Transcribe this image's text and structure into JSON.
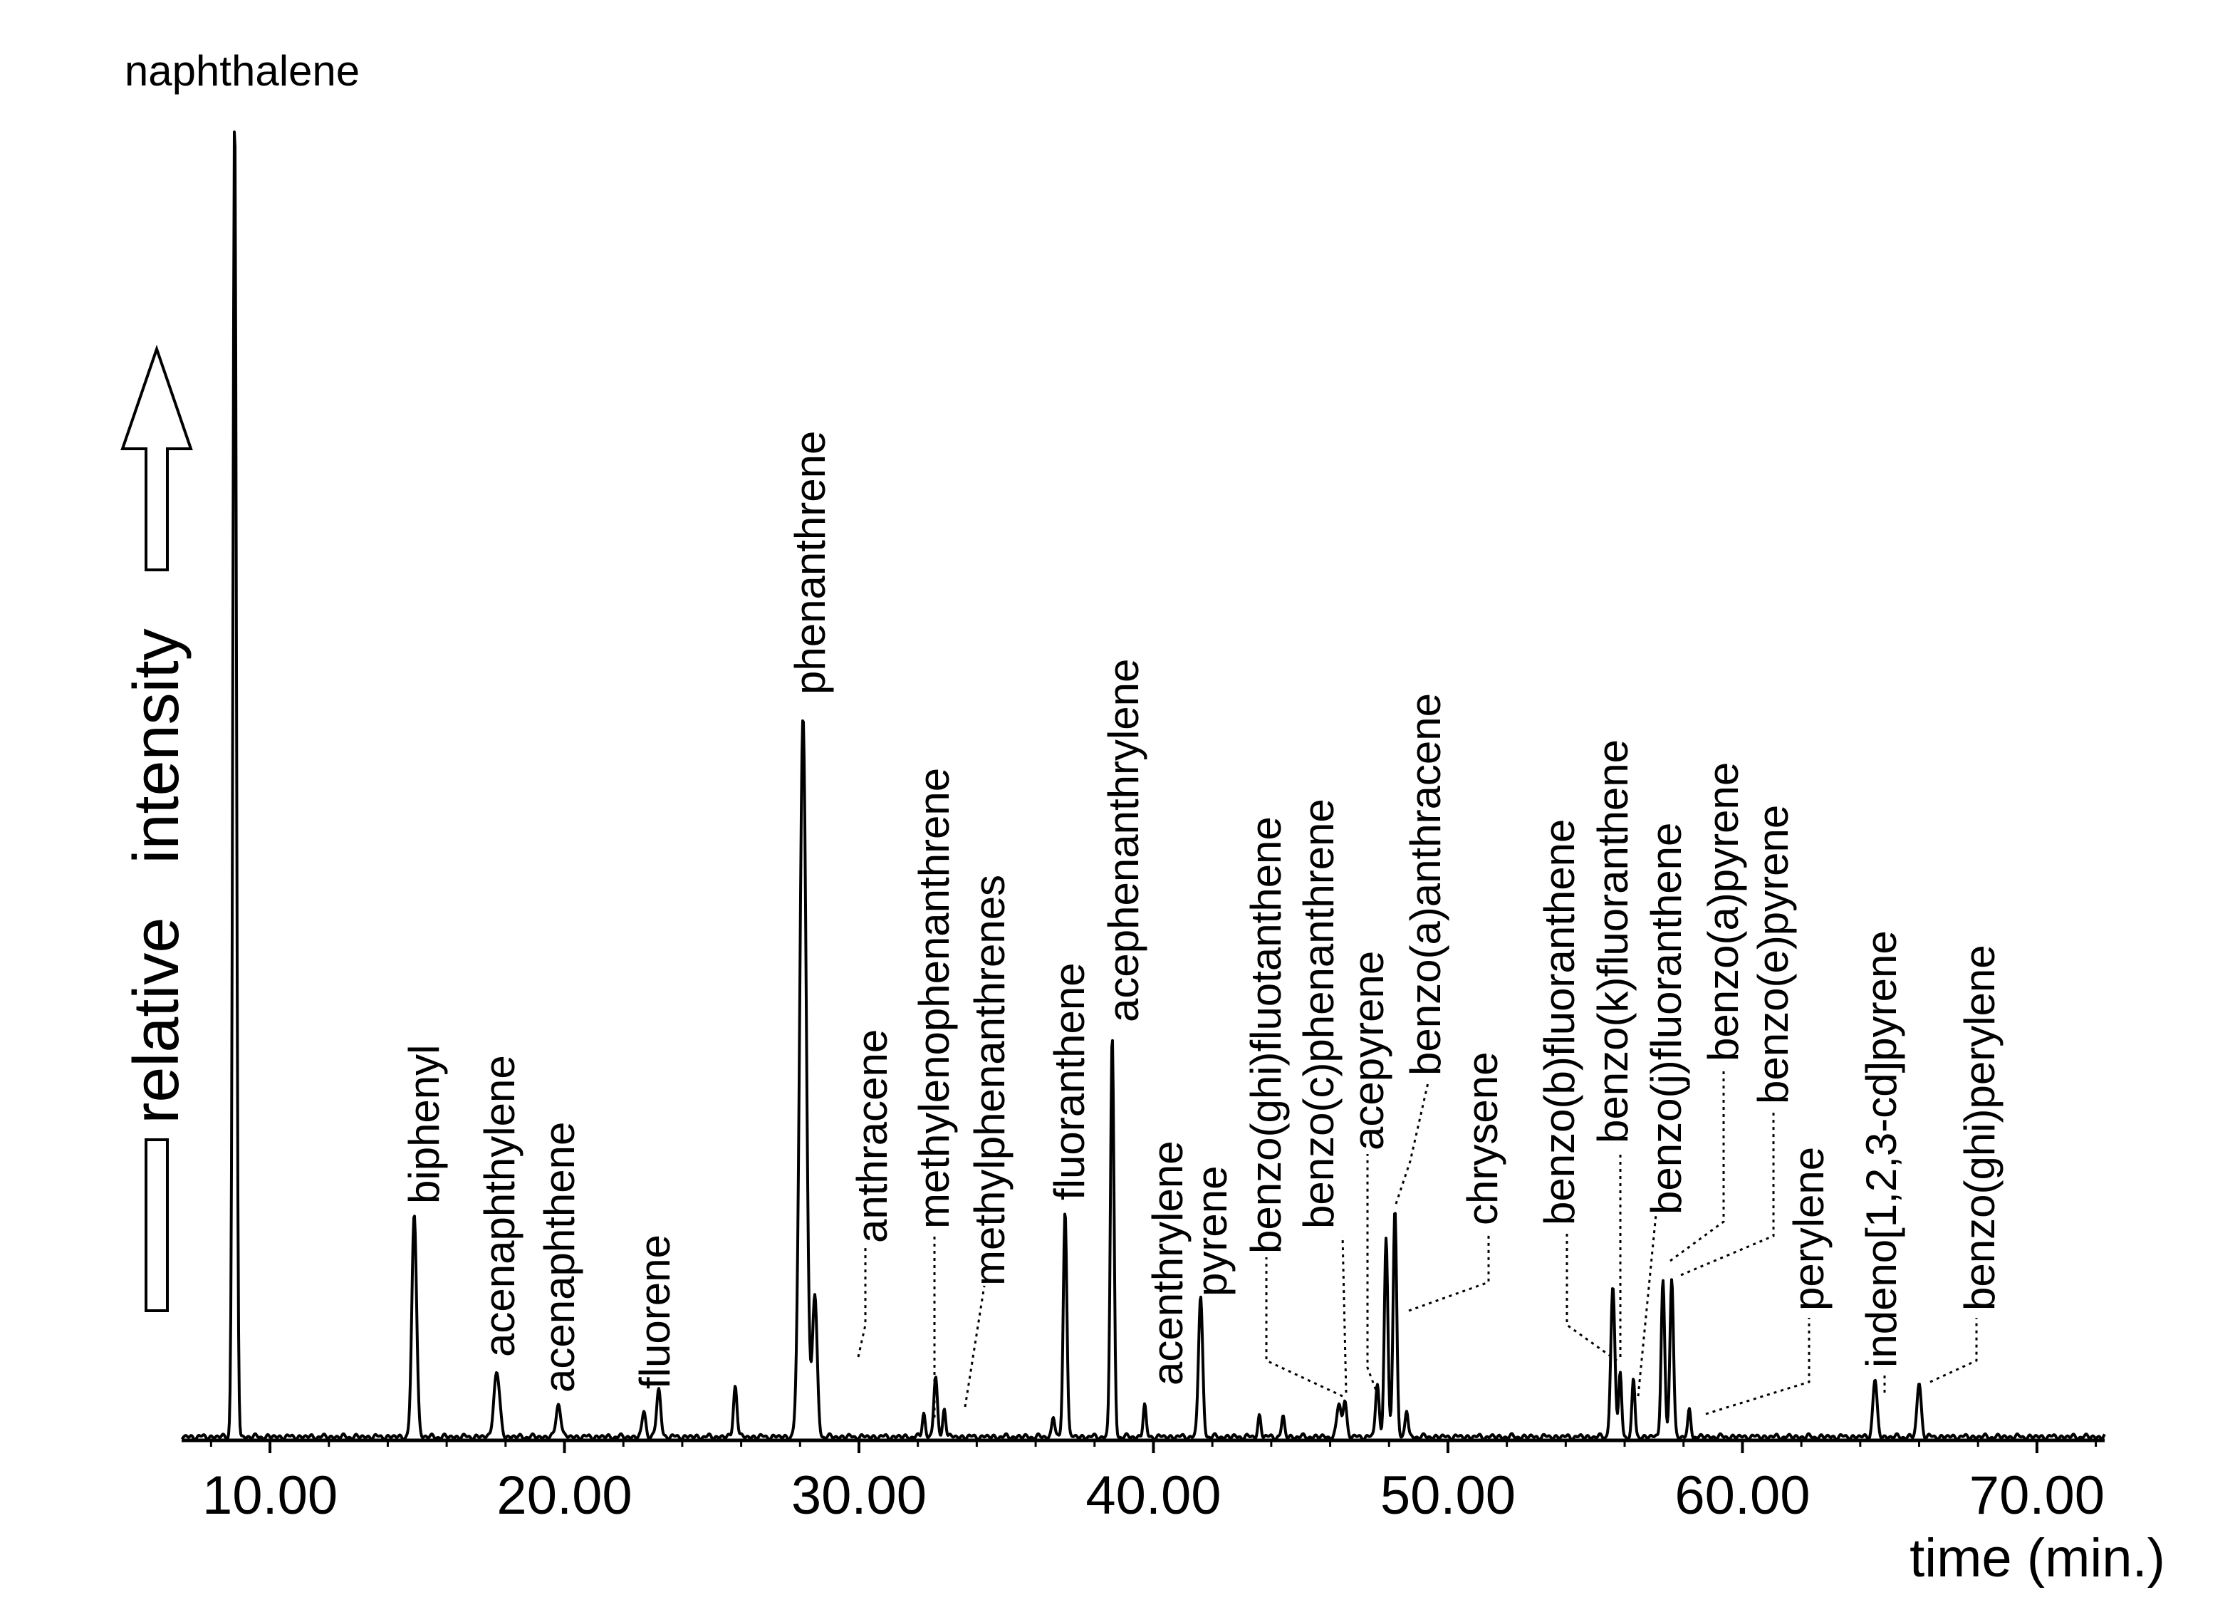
{
  "chart_data": {
    "type": "line",
    "title": "",
    "xlabel": "time (min.)",
    "ylabel": "relative   intensity",
    "xlim": [
      7.0,
      72.3
    ],
    "ylim": [
      0,
      100
    ],
    "xticks": [
      {
        "value": 10,
        "label": "10.00"
      },
      {
        "value": 20,
        "label": "20.00"
      },
      {
        "value": 30,
        "label": "30.00"
      },
      {
        "value": 40,
        "label": "40.00"
      },
      {
        "value": 50,
        "label": "50.00"
      },
      {
        "value": 60,
        "label": "60.00"
      },
      {
        "value": 70,
        "label": "70.00"
      }
    ],
    "peaks": [
      {
        "rt": 8.8,
        "height": 100,
        "width": 0.06
      },
      {
        "rt": 14.9,
        "height": 16.8,
        "width": 0.08
      },
      {
        "rt": 17.7,
        "height": 4.8,
        "width": 0.1
      },
      {
        "rt": 19.8,
        "height": 2.5,
        "width": 0.08
      },
      {
        "rt": 22.7,
        "height": 2.0,
        "width": 0.06
      },
      {
        "rt": 23.2,
        "height": 3.6,
        "width": 0.07
      },
      {
        "rt": 25.8,
        "height": 3.9,
        "width": 0.06
      },
      {
        "rt": 28.1,
        "height": 54.5,
        "width": 0.11
      },
      {
        "rt": 28.5,
        "height": 10.7,
        "width": 0.08
      },
      {
        "rt": 32.2,
        "height": 1.8,
        "width": 0.05
      },
      {
        "rt": 32.6,
        "height": 4.5,
        "width": 0.06
      },
      {
        "rt": 32.9,
        "height": 2.2,
        "width": 0.05
      },
      {
        "rt": 36.6,
        "height": 1.6,
        "width": 0.05
      },
      {
        "rt": 37.0,
        "height": 17.2,
        "width": 0.06
      },
      {
        "rt": 38.6,
        "height": 30.3,
        "width": 0.06
      },
      {
        "rt": 39.7,
        "height": 2.4,
        "width": 0.05
      },
      {
        "rt": 41.6,
        "height": 10.6,
        "width": 0.07
      },
      {
        "rt": 43.6,
        "height": 1.6,
        "width": 0.05
      },
      {
        "rt": 44.4,
        "height": 1.5,
        "width": 0.05
      },
      {
        "rt": 46.3,
        "height": 2.5,
        "width": 0.07
      },
      {
        "rt": 46.5,
        "height": 2.8,
        "width": 0.06
      },
      {
        "rt": 47.6,
        "height": 4.0,
        "width": 0.06
      },
      {
        "rt": 47.9,
        "height": 15.0,
        "width": 0.06
      },
      {
        "rt": 48.2,
        "height": 17.4,
        "width": 0.06
      },
      {
        "rt": 48.6,
        "height": 2.0,
        "width": 0.05
      },
      {
        "rt": 55.6,
        "height": 11.2,
        "width": 0.07
      },
      {
        "rt": 55.85,
        "height": 4.8,
        "width": 0.05
      },
      {
        "rt": 56.3,
        "height": 4.3,
        "width": 0.05
      },
      {
        "rt": 57.3,
        "height": 11.8,
        "width": 0.06
      },
      {
        "rt": 57.6,
        "height": 12.0,
        "width": 0.06
      },
      {
        "rt": 58.2,
        "height": 2.0,
        "width": 0.05
      },
      {
        "rt": 64.5,
        "height": 4.3,
        "width": 0.07
      },
      {
        "rt": 66.0,
        "height": 4.1,
        "width": 0.07
      }
    ],
    "annotations": [
      {
        "name": "naphthalene",
        "rt": 8.8,
        "label": "naphthalene",
        "orientation": "horizontal"
      },
      {
        "name": "biphenyl",
        "rt": 14.9,
        "label": "biphenyl"
      },
      {
        "name": "acenaphthylene",
        "rt": 17.7,
        "label": "acenaphthylene"
      },
      {
        "name": "acenaphthene",
        "rt": 19.8,
        "label": "acenaphthene"
      },
      {
        "name": "fluorene",
        "rt": 23.2,
        "label": "fluorene"
      },
      {
        "name": "phenanthrene",
        "rt": 28.1,
        "label": "phenanthrene"
      },
      {
        "name": "anthracene",
        "rt": 28.5,
        "label": "anthracene"
      },
      {
        "name": "methylenophenanthrene",
        "rt": 32.6,
        "label": "methylenophenanthrene"
      },
      {
        "name": "methylphenanthrenes",
        "rt": 33.2,
        "label": "methylphenanthrenes"
      },
      {
        "name": "fluoranthene",
        "rt": 37.0,
        "label": "fluoranthene"
      },
      {
        "name": "acephenanthrylene",
        "rt": 38.6,
        "label": "acephenanthrylene"
      },
      {
        "name": "acenthrylene",
        "rt": 39.7,
        "label": "acenthrylene"
      },
      {
        "name": "pyrene",
        "rt": 41.6,
        "label": "pyrene"
      },
      {
        "name": "benzo-ghi-fluotanthene",
        "rt": 46.3,
        "label": "benzo(ghi)fluotanthene"
      },
      {
        "name": "benzo-c-phenanthrene",
        "rt": 46.5,
        "label": "benzo(c)phenanthrene"
      },
      {
        "name": "acepyrene",
        "rt": 47.6,
        "label": "acepyrene"
      },
      {
        "name": "benzo-a-anthracene",
        "rt": 47.9,
        "label": "benzo(a)anthracene"
      },
      {
        "name": "chrysene",
        "rt": 48.2,
        "label": "chrysene"
      },
      {
        "name": "benzo-b-fluoranthene",
        "rt": 55.6,
        "label": "benzo(b)fluoranthene"
      },
      {
        "name": "benzo-k-fluoranthene",
        "rt": 55.85,
        "label": "benzo(k)fluoranthene"
      },
      {
        "name": "benzo-j-fluoranthene",
        "rt": 56.3,
        "label": "benzo(j)fluoranthene"
      },
      {
        "name": "benzo-a-pyrene",
        "rt": 57.3,
        "label": "benzo(a)pyrene"
      },
      {
        "name": "benzo-e-pyrene",
        "rt": 57.6,
        "label": "benzo(e)pyrene"
      },
      {
        "name": "perylene",
        "rt": 58.2,
        "label": "perylene"
      },
      {
        "name": "indeno-pyrene",
        "rt": 64.5,
        "label": "indeno[1,2,3-cd]pyrene"
      },
      {
        "name": "benzo-ghi-perylene",
        "rt": 66.0,
        "label": "benzo(ghi)perylene"
      }
    ],
    "colors": {
      "line": "#000000",
      "background": "#ffffff"
    }
  }
}
